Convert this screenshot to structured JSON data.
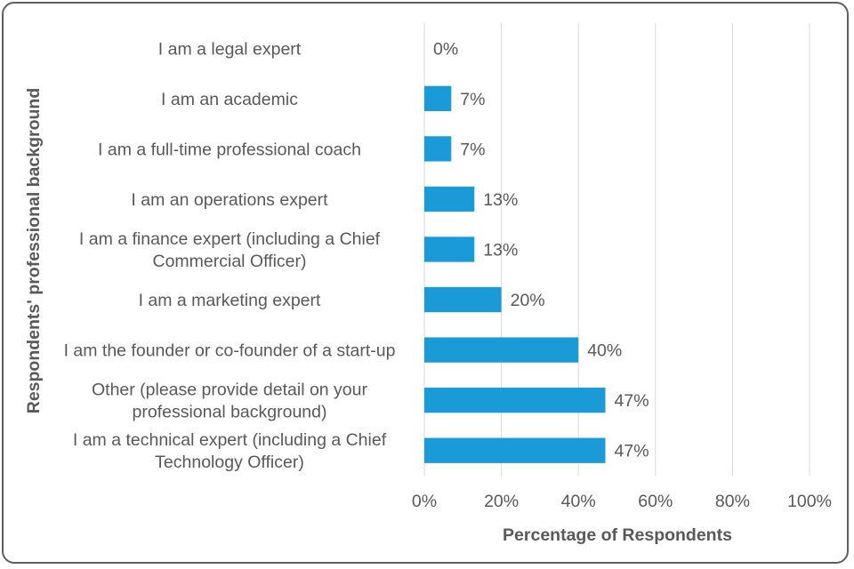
{
  "chart_data": {
    "type": "bar",
    "orientation": "horizontal",
    "title": "",
    "categories": [
      "I am a legal expert",
      "I am an academic",
      "I am a full-time professional coach",
      "I am an operations expert",
      "I am a finance expert (including a Chief Commercial Officer)",
      "I am a marketing expert",
      "I am the founder or co-founder of a start-up",
      "Other (please provide detail on your professional background)",
      "I am a technical expert (including a Chief Technology Officer)"
    ],
    "category_lines": [
      [
        "I am a legal expert"
      ],
      [
        "I am an academic"
      ],
      [
        "I am a full-time professional coach"
      ],
      [
        "I am an operations expert"
      ],
      [
        "I am a finance expert (including a Chief",
        "Commercial Officer)"
      ],
      [
        "I am a marketing expert"
      ],
      [
        "I am the founder or co-founder of a start-up"
      ],
      [
        "Other (please provide detail on your",
        "professional background)"
      ],
      [
        "I am a technical expert (including a Chief",
        "Technology Officer)"
      ]
    ],
    "values": [
      0,
      7,
      7,
      13,
      13,
      20,
      40,
      47,
      47
    ],
    "value_labels": [
      "0%",
      "7%",
      "7%",
      "13%",
      "13%",
      "20%",
      "40%",
      "47%",
      "47%"
    ],
    "xlabel": "Percentage of Respondents",
    "ylabel": "Respondents' professional background",
    "xlim": [
      0,
      100
    ],
    "xticks": [
      0,
      20,
      40,
      60,
      80,
      100
    ],
    "xtick_labels": [
      "0%",
      "20%",
      "40%",
      "60%",
      "80%",
      "100%"
    ],
    "grid": true,
    "bar_color": "#1a9ad6"
  }
}
